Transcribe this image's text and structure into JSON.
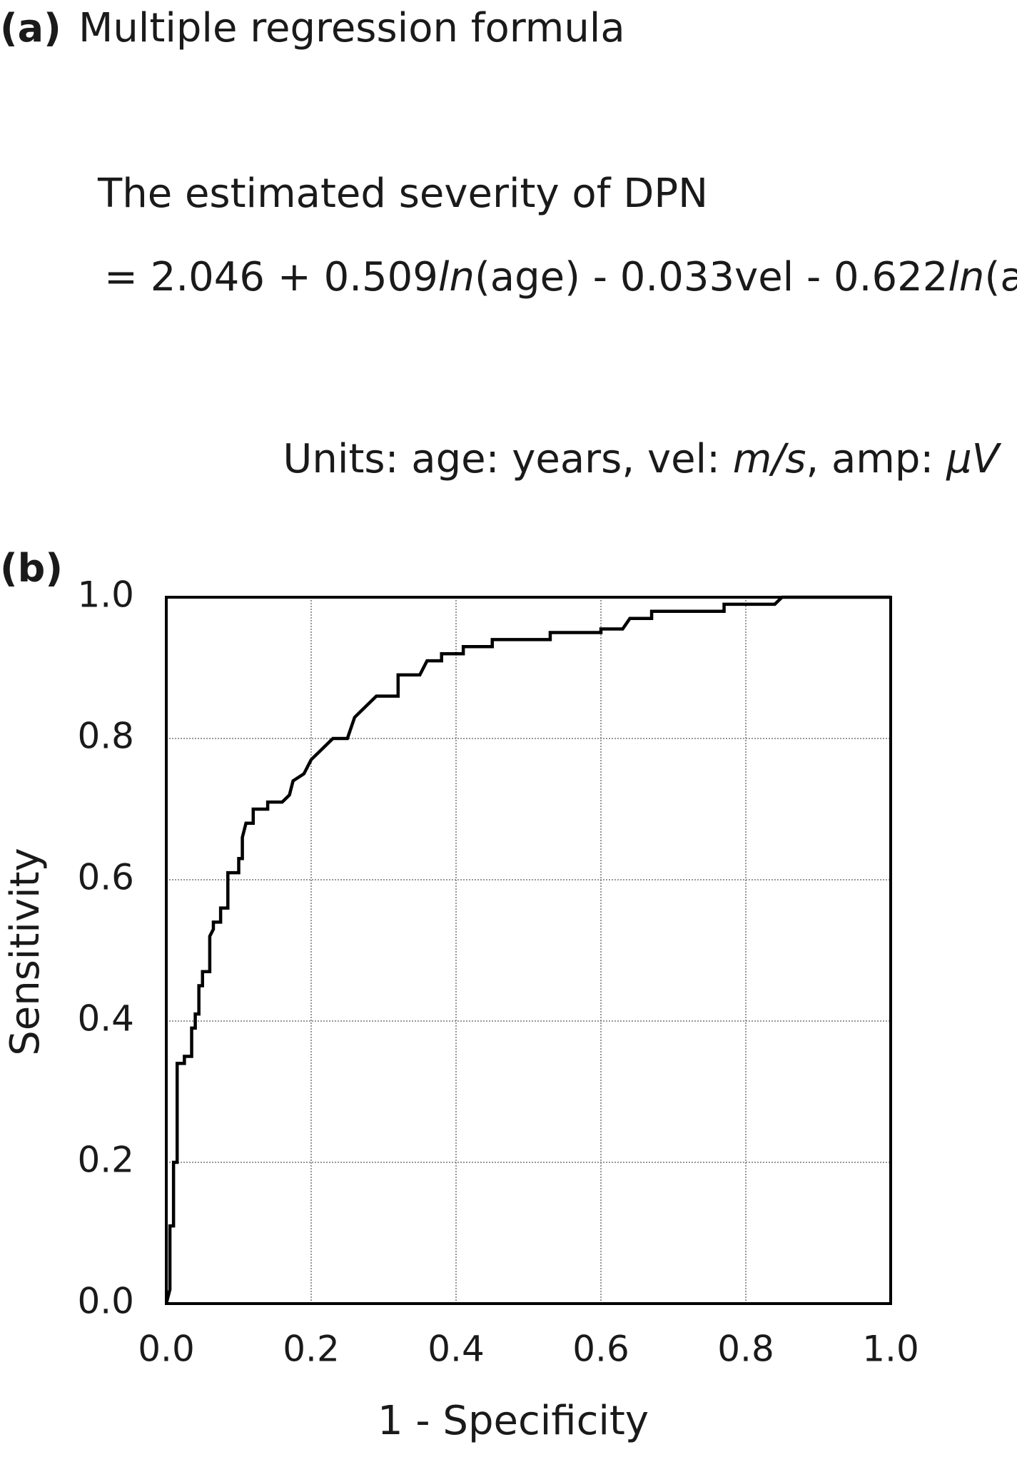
{
  "panel_a": {
    "label": "(a)",
    "title": "Multiple regression formula",
    "formula_line1": "The estimated severity of DPN",
    "formula_line2": [
      "= 2.046 + 0.509",
      "ln",
      "(age) - 0.033vel - 0.622",
      "ln",
      "(amp)"
    ],
    "units": [
      "Units: age: years, vel: ",
      "m/s",
      ", amp: ",
      "μV"
    ]
  },
  "chart_data": {
    "type": "line",
    "panel_label": "(b)",
    "x_label": "1 - Specificity",
    "y_label": "Sensitivity",
    "color": "#000000",
    "grid": true,
    "xlim": [
      0,
      1
    ],
    "ylim": [
      0,
      1
    ],
    "xticks": [
      {
        "value": 0,
        "label": "0.0"
      },
      0.2,
      0.4,
      0.6,
      0.8,
      {
        "value": 1,
        "label": "1.0"
      }
    ],
    "yticks": [
      {
        "value": 0,
        "label": "0.0"
      },
      0.2,
      0.4,
      0.6,
      0.8,
      {
        "value": 1,
        "label": "1.0"
      }
    ],
    "x": [
      0,
      0.005,
      0.005,
      0.01,
      0.01,
      0.015,
      0.015,
      0.025,
      0.025,
      0.035,
      0.035,
      0.04,
      0.04,
      0.045,
      0.045,
      0.05,
      0.05,
      0.06,
      0.06,
      0.065,
      0.065,
      0.075,
      0.075,
      0.085,
      0.085,
      0.1,
      0.1,
      0.105,
      0.105,
      0.11,
      0.12,
      0.12,
      0.14,
      0.14,
      0.16,
      0.17,
      0.175,
      0.19,
      0.2,
      0.21,
      0.22,
      0.23,
      0.25,
      0.26,
      0.27,
      0.28,
      0.29,
      0.32,
      0.32,
      0.35,
      0.36,
      0.38,
      0.38,
      0.41,
      0.41,
      0.45,
      0.45,
      0.53,
      0.53,
      0.6,
      0.6,
      0.63,
      0.64,
      0.67,
      0.67,
      0.77,
      0.77,
      0.84,
      0.85,
      1
    ],
    "values": [
      0,
      0.02,
      0.11,
      0.11,
      0.2,
      0.2,
      0.34,
      0.34,
      0.35,
      0.35,
      0.39,
      0.39,
      0.41,
      0.41,
      0.45,
      0.45,
      0.47,
      0.47,
      0.52,
      0.53,
      0.54,
      0.54,
      0.56,
      0.56,
      0.61,
      0.61,
      0.63,
      0.63,
      0.66,
      0.68,
      0.68,
      0.7,
      0.7,
      0.71,
      0.71,
      0.72,
      0.74,
      0.75,
      0.77,
      0.78,
      0.79,
      0.8,
      0.8,
      0.83,
      0.84,
      0.85,
      0.86,
      0.86,
      0.89,
      0.89,
      0.91,
      0.91,
      0.92,
      0.92,
      0.93,
      0.93,
      0.94,
      0.94,
      0.95,
      0.95,
      0.955,
      0.955,
      0.97,
      0.97,
      0.98,
      0.98,
      0.99,
      0.99,
      1,
      1
    ]
  }
}
